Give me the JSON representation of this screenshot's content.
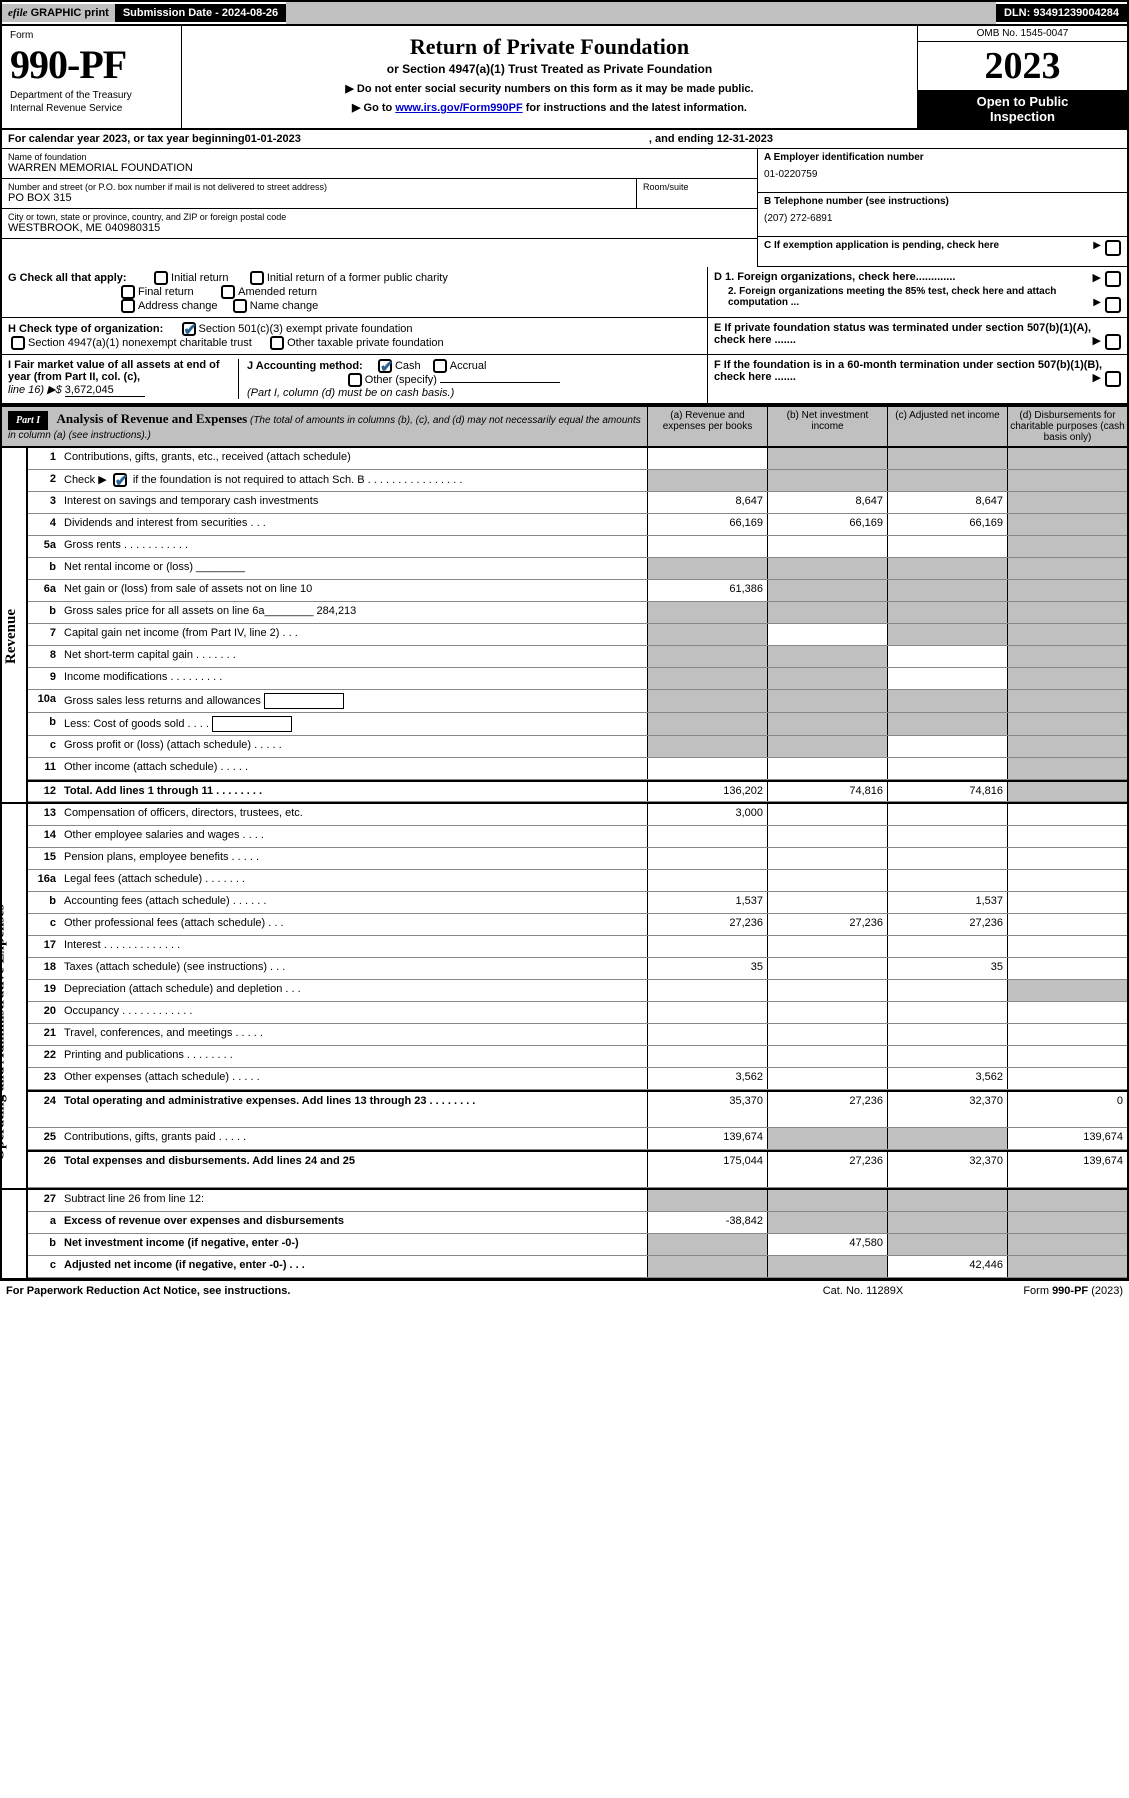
{
  "topbar": {
    "efile_prefix": "efile",
    "efile_suffix": " GRAPHIC print",
    "submission_label": "Submission Date - ",
    "submission_value": "2024-08-26",
    "dln_label": "DLN: ",
    "dln_value": "93491239004284"
  },
  "header": {
    "form_word": "Form",
    "form_number": "990-PF",
    "dept1": "Department of the Treasury",
    "dept2": "Internal Revenue Service",
    "title": "Return of Private Foundation",
    "subtitle": "or Section 4947(a)(1) Trust Treated as Private Foundation",
    "note1_prefix": "▶ Do not enter social security numbers on this form as it may be made public.",
    "note2_prefix": "▶ Go to ",
    "note2_link": "www.irs.gov/Form990PF",
    "note2_suffix": " for instructions and the latest information.",
    "omb": "OMB No. 1545-0047",
    "year": "2023",
    "open1": "Open to Public",
    "open2": "Inspection"
  },
  "calyear": {
    "prefix": "For calendar year 2023, or tax year beginning ",
    "begin": "01-01-2023",
    "mid": ", and ending ",
    "end": "12-31-2023"
  },
  "info": {
    "name_lbl": "Name of foundation",
    "name_val": "WARREN MEMORIAL FOUNDATION",
    "addr_lbl": "Number and street (or P.O. box number if mail is not delivered to street address)",
    "addr_val": "PO BOX 315",
    "room_lbl": "Room/suite",
    "city_lbl": "City or town, state or province, country, and ZIP or foreign postal code",
    "city_val": "WESTBROOK, ME  040980315",
    "ein_lbl": "A Employer identification number",
    "ein_val": "01-0220759",
    "tel_lbl": "B Telephone number (see instructions)",
    "tel_val": "(207) 272-6891",
    "c_lbl": "C If exemption application is pending, check here",
    "d1_lbl": "D 1. Foreign organizations, check here.............",
    "d2_lbl": "2. Foreign organizations meeting the 85% test, check here and attach computation ...",
    "e_lbl": "E  If private foundation status was terminated under section 507(b)(1)(A), check here .......",
    "f_lbl": "F  If the foundation is in a 60-month termination under section 507(b)(1)(B), check here .......",
    "g_lbl": "G Check all that apply:",
    "g_opts": [
      "Initial return",
      "Initial return of a former public charity",
      "Final return",
      "Amended return",
      "Address change",
      "Name change"
    ],
    "h_lbl": "H Check type of organization:",
    "h_opt1": "Section 501(c)(3) exempt private foundation",
    "h_opt2": "Section 4947(a)(1) nonexempt charitable trust",
    "h_opt3": "Other taxable private foundation",
    "i_lbl": "I Fair market value of all assets at end of year (from Part II, col. (c),",
    "i_line": "line 16) ▶$ ",
    "i_val": "3,672,045",
    "j_lbl": "J Accounting method:",
    "j_opts": [
      "Cash",
      "Accrual"
    ],
    "j_other": "Other (specify)",
    "j_note": "(Part I, column (d) must be on cash basis.)"
  },
  "part1": {
    "label": "Part I",
    "title": "Analysis of Revenue and Expenses",
    "note": " (The total of amounts in columns (b), (c), and (d) may not necessarily equal the amounts in column (a) (see instructions).)",
    "col_a": "(a)   Revenue and expenses per books",
    "col_b": "(b)   Net investment income",
    "col_c": "(c)   Adjusted net income",
    "col_d": "(d)  Disbursements for charitable purposes (cash basis only)"
  },
  "sidebars": {
    "revenue": "Revenue",
    "expenses": "Operating and Administrative Expenses"
  },
  "rows": [
    {
      "n": "1",
      "d": "Contributions, gifts, grants, etc., received (attach schedule)",
      "a": "",
      "b": "s",
      "c": "s",
      "dd": "s"
    },
    {
      "n": "2",
      "d": "Check ▶ [x] if the foundation is not required to attach Sch. B   .  .  .  .  .  .  .  .  .  .  .  .  .  .  .  .",
      "a": "s",
      "b": "s",
      "c": "s",
      "dd": "s"
    },
    {
      "n": "3",
      "d": "Interest on savings and temporary cash investments",
      "a": "8,647",
      "b": "8,647",
      "c": "8,647",
      "dd": "s"
    },
    {
      "n": "4",
      "d": "Dividends and interest from securities    .   .   .",
      "a": "66,169",
      "b": "66,169",
      "c": "66,169",
      "dd": "s"
    },
    {
      "n": "5a",
      "d": "Gross rents   .   .   .   .   .   .   .   .   .   .   .",
      "a": "",
      "b": "",
      "c": "",
      "dd": "s"
    },
    {
      "n": "b",
      "d": "Net rental income or (loss)  ________",
      "a": "s",
      "b": "s",
      "c": "s",
      "dd": "s"
    },
    {
      "n": "6a",
      "d": "Net gain or (loss) from sale of assets not on line 10",
      "a": "61,386",
      "b": "s",
      "c": "s",
      "dd": "s"
    },
    {
      "n": "b",
      "d": "Gross sales price for all assets on line 6a________ 284,213",
      "a": "s",
      "b": "s",
      "c": "s",
      "dd": "s"
    },
    {
      "n": "7",
      "d": "Capital gain net income (from Part IV, line 2)    .   .   .",
      "a": "s",
      "b": "",
      "c": "s",
      "dd": "s"
    },
    {
      "n": "8",
      "d": "Net short-term capital gain  .   .   .   .   .   .   .",
      "a": "s",
      "b": "s",
      "c": "",
      "dd": "s"
    },
    {
      "n": "9",
      "d": "Income modifications  .   .   .   .   .   .   .   .   .",
      "a": "s",
      "b": "s",
      "c": "",
      "dd": "s"
    },
    {
      "n": "10a",
      "d": "Gross sales less returns and allowances  [__]",
      "a": "s",
      "b": "s",
      "c": "s",
      "dd": "s"
    },
    {
      "n": "b",
      "d": "Less: Cost of goods sold    .   .   .   .   [__]",
      "a": "s",
      "b": "s",
      "c": "s",
      "dd": "s"
    },
    {
      "n": "c",
      "d": "Gross profit or (loss) (attach schedule)    .   .   .   .   .",
      "a": "s",
      "b": "s",
      "c": "",
      "dd": "s"
    },
    {
      "n": "11",
      "d": "Other income (attach schedule)    .   .   .   .   .",
      "a": "",
      "b": "",
      "c": "",
      "dd": "s"
    },
    {
      "n": "12",
      "d": "Total. Add lines 1 through 11   .   .   .   .   .   .   .   .",
      "a": "136,202",
      "b": "74,816",
      "c": "74,816",
      "dd": "s",
      "bold": true,
      "thick": true
    }
  ],
  "erows": [
    {
      "n": "13",
      "d": "Compensation of officers, directors, trustees, etc.",
      "a": "3,000",
      "b": "",
      "c": "",
      "dd": ""
    },
    {
      "n": "14",
      "d": "Other employee salaries and wages    .   .   .   .",
      "a": "",
      "b": "",
      "c": "",
      "dd": ""
    },
    {
      "n": "15",
      "d": "Pension plans, employee benefits  .   .   .   .   .",
      "a": "",
      "b": "",
      "c": "",
      "dd": ""
    },
    {
      "n": "16a",
      "d": "Legal fees (attach schedule)  .   .   .   .   .   .   .",
      "a": "",
      "b": "",
      "c": "",
      "dd": ""
    },
    {
      "n": "b",
      "d": "Accounting fees (attach schedule)  .   .   .   .   .   .",
      "a": "1,537",
      "b": "",
      "c": "1,537",
      "dd": ""
    },
    {
      "n": "c",
      "d": "Other professional fees (attach schedule)    .   .   .",
      "a": "27,236",
      "b": "27,236",
      "c": "27,236",
      "dd": ""
    },
    {
      "n": "17",
      "d": "Interest  .   .   .   .   .   .   .   .   .   .   .   .   .",
      "a": "",
      "b": "",
      "c": "",
      "dd": ""
    },
    {
      "n": "18",
      "d": "Taxes (attach schedule) (see instructions)    .   .   .",
      "a": "35",
      "b": "",
      "c": "35",
      "dd": ""
    },
    {
      "n": "19",
      "d": "Depreciation (attach schedule) and depletion    .   .   .",
      "a": "",
      "b": "",
      "c": "",
      "dd": "s"
    },
    {
      "n": "20",
      "d": "Occupancy  .   .   .   .   .   .   .   .   .   .   .   .",
      "a": "",
      "b": "",
      "c": "",
      "dd": ""
    },
    {
      "n": "21",
      "d": "Travel, conferences, and meetings  .   .   .   .   .",
      "a": "",
      "b": "",
      "c": "",
      "dd": ""
    },
    {
      "n": "22",
      "d": "Printing and publications  .   .   .   .   .   .   .   .",
      "a": "",
      "b": "",
      "c": "",
      "dd": ""
    },
    {
      "n": "23",
      "d": "Other expenses (attach schedule)  .   .   .   .   .",
      "a": "3,562",
      "b": "",
      "c": "3,562",
      "dd": ""
    },
    {
      "n": "24",
      "d": "Total operating and administrative expenses. Add lines 13 through 23   .   .   .   .   .   .   .   .",
      "a": "35,370",
      "b": "27,236",
      "c": "32,370",
      "dd": "0",
      "bold": true,
      "thick": true,
      "tall": true
    },
    {
      "n": "25",
      "d": "Contributions, gifts, grants paid     .   .   .   .   .",
      "a": "139,674",
      "b": "s",
      "c": "s",
      "dd": "139,674"
    },
    {
      "n": "26",
      "d": "Total expenses and disbursements. Add lines 24 and 25",
      "a": "175,044",
      "b": "27,236",
      "c": "32,370",
      "dd": "139,674",
      "bold": true,
      "thick": true,
      "tall": true
    }
  ],
  "srows": [
    {
      "n": "27",
      "d": "Subtract line 26 from line 12:",
      "a": "s",
      "b": "s",
      "c": "s",
      "dd": "s"
    },
    {
      "n": "a",
      "d": "Excess of revenue over expenses and disbursements",
      "a": "-38,842",
      "b": "s",
      "c": "s",
      "dd": "s",
      "bold": true
    },
    {
      "n": "b",
      "d": "Net investment income (if negative, enter -0-)",
      "a": "s",
      "b": "47,580",
      "c": "s",
      "dd": "s",
      "bold": true
    },
    {
      "n": "c",
      "d": "Adjusted net income (if negative, enter -0-)   .   .   .",
      "a": "s",
      "b": "s",
      "c": "42,446",
      "dd": "s",
      "bold": true
    }
  ],
  "footer": {
    "left": "For Paperwork Reduction Act Notice, see instructions.",
    "mid": "Cat. No. 11289X",
    "right": "Form 990-PF (2023)"
  }
}
